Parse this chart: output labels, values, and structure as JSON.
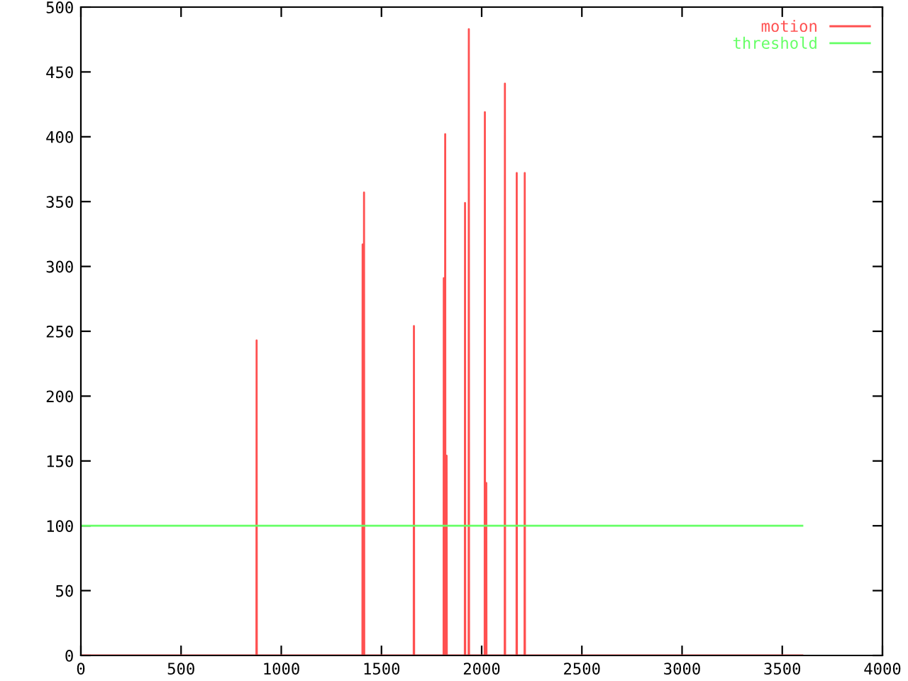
{
  "chart_data": {
    "type": "line",
    "xlim": [
      0,
      4000
    ],
    "ylim": [
      0,
      500
    ],
    "xticks": [
      0,
      500,
      1000,
      1500,
      2000,
      2500,
      3000,
      3500,
      4000
    ],
    "yticks": [
      0,
      50,
      100,
      150,
      200,
      250,
      300,
      350,
      400,
      450,
      500
    ],
    "grid": false,
    "legend": "top right",
    "marker": "none",
    "line_style": "solid",
    "series": [
      {
        "name": "motion",
        "color": "#ff5050",
        "x": [
          0,
          876,
          877,
          878,
          1405,
          1406,
          1407,
          1412,
          1413,
          1414,
          1661,
          1662,
          1663,
          1810,
          1811,
          1812,
          1817,
          1818,
          1819,
          1824,
          1825,
          1826,
          1916,
          1917,
          1918,
          1935,
          1936,
          1937,
          2015,
          2016,
          2017,
          2022,
          2023,
          2024,
          2115,
          2116,
          2117,
          2174,
          2175,
          2176,
          2214,
          2215,
          2216,
          3600
        ],
        "values": [
          0,
          0,
          243,
          0,
          0,
          317,
          0,
          0,
          357,
          0,
          0,
          254,
          0,
          0,
          291,
          0,
          0,
          402,
          0,
          0,
          154,
          0,
          0,
          349,
          0,
          0,
          483,
          0,
          0,
          419,
          0,
          0,
          133,
          0,
          0,
          441,
          0,
          0,
          372,
          0,
          0,
          372,
          0,
          0
        ]
      },
      {
        "name": "threshold",
        "color": "#66ff66",
        "x": [
          0,
          3600
        ],
        "values": [
          100,
          100
        ]
      }
    ]
  }
}
